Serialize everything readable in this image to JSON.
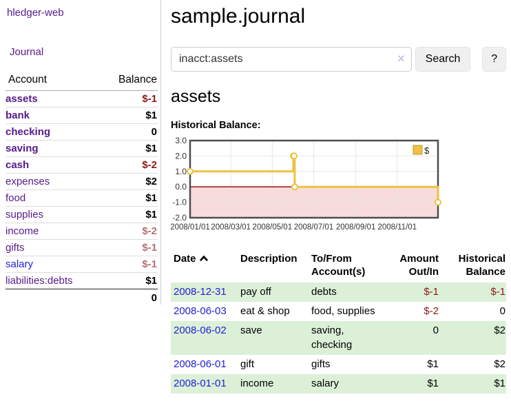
{
  "colors": {
    "link_purple": "#551a8b",
    "link_blue": "#2121d6",
    "neg_strong": "#8b1a1a",
    "neg_muted": "#b4706f",
    "row_green": "#dcf0d8",
    "chart_gold": "#edc240",
    "chart_pink": "#f8dcdc",
    "zero_line": "#8b0000",
    "grid_gray": "#e6e6e6",
    "frame_gray": "#4d4d4d"
  },
  "brand": {
    "label": "hledger-web"
  },
  "nav": {
    "journal": "Journal"
  },
  "sidebar": {
    "col_account": "Account",
    "col_balance": "Balance",
    "accounts": [
      {
        "name": "assets",
        "balance": "$-1",
        "indent": 1,
        "bold": true,
        "neg": "strong"
      },
      {
        "name": "bank",
        "balance": "$1",
        "indent": 2,
        "bold": true,
        "neg": "none"
      },
      {
        "name": "checking",
        "balance": "0",
        "indent": 3,
        "bold": true,
        "neg": "none"
      },
      {
        "name": "saving",
        "balance": "$1",
        "indent": 3,
        "bold": true,
        "neg": "none"
      },
      {
        "name": "cash",
        "balance": "$-2",
        "indent": 2,
        "bold": true,
        "neg": "strong"
      },
      {
        "name": "expenses",
        "balance": "$2",
        "indent": 1,
        "bold": false,
        "neg": "none"
      },
      {
        "name": "food",
        "balance": "$1",
        "indent": 2,
        "bold": false,
        "neg": "none"
      },
      {
        "name": "supplies",
        "balance": "$1",
        "indent": 2,
        "bold": false,
        "neg": "none"
      },
      {
        "name": "income",
        "balance": "$-2",
        "indent": 1,
        "bold": false,
        "neg": "muted"
      },
      {
        "name": "gifts",
        "balance": "$-1",
        "indent": 2,
        "bold": false,
        "neg": "muted"
      },
      {
        "name": "salary",
        "balance": "$-1",
        "indent": 2,
        "bold": false,
        "neg": "muted",
        "blue": true
      },
      {
        "name": "liabilities:debts",
        "balance": "$1",
        "indent": 1,
        "bold": false,
        "neg": "none"
      }
    ],
    "total": "0"
  },
  "header": {
    "title": "sample.journal"
  },
  "search": {
    "value": "inacct:assets",
    "clear": "×",
    "search_button": "Search",
    "help_button": "?"
  },
  "section": {
    "heading": "assets",
    "chart_title": "Historical Balance:"
  },
  "chart_data": {
    "type": "line",
    "step": true,
    "title": "Historical Balance of assets",
    "series": [
      {
        "name": "$",
        "points": [
          {
            "date": "2008-01-01",
            "value": 1
          },
          {
            "date": "2008-06-01",
            "value": 2
          },
          {
            "date": "2008-06-02",
            "value": 2
          },
          {
            "date": "2008-06-03",
            "value": 0
          },
          {
            "date": "2008-12-31",
            "value": -1
          }
        ]
      }
    ],
    "x_range": [
      "2008-01-01",
      "2008-12-31"
    ],
    "x_ticks": [
      {
        "label": "2008/01/01",
        "date": "2008-01-01"
      },
      {
        "label": "2008/03/01",
        "date": "2008-03-01"
      },
      {
        "label": "2008/05/01",
        "date": "2008-05-01"
      },
      {
        "label": "2008/07/01",
        "date": "2008-07-01"
      },
      {
        "label": "2008/09/01",
        "date": "2008-09-01"
      },
      {
        "label": "2008/11/01",
        "date": "2008-11-01"
      }
    ],
    "y_ticks": [
      3.0,
      2.0,
      1.0,
      0.0,
      -1.0,
      -2.0
    ],
    "ylim": [
      -2,
      3
    ],
    "legend": {
      "label": "$",
      "position": "top-right"
    },
    "grid": true,
    "negative_region_shaded": true
  },
  "register": {
    "headers": {
      "date": "Date",
      "description": "Description",
      "accounts": "To/From Account(s)",
      "amount": "Amount Out/In",
      "balance": "Historical Balance"
    },
    "sort_icon": "chevron-up",
    "rows": [
      {
        "date": "2008-12-31",
        "description": "pay off",
        "accounts": "debts",
        "amount": "$-1",
        "balance": "$-1",
        "amount_neg": true,
        "balance_neg": true,
        "shaded": true
      },
      {
        "date": "2008-06-03",
        "description": "eat & shop",
        "accounts": "food, supplies",
        "amount": "$-2",
        "balance": "0",
        "amount_neg": true,
        "balance_neg": false,
        "shaded": false
      },
      {
        "date": "2008-06-02",
        "description": "save",
        "accounts": "saving, checking",
        "amount": "0",
        "balance": "$2",
        "amount_neg": false,
        "balance_neg": false,
        "shaded": true
      },
      {
        "date": "2008-06-01",
        "description": "gift",
        "accounts": "gifts",
        "amount": "$1",
        "balance": "$2",
        "amount_neg": false,
        "balance_neg": false,
        "shaded": false
      },
      {
        "date": "2008-01-01",
        "description": "income",
        "accounts": "salary",
        "amount": "$1",
        "balance": "$1",
        "amount_neg": false,
        "balance_neg": false,
        "shaded": true
      }
    ]
  }
}
